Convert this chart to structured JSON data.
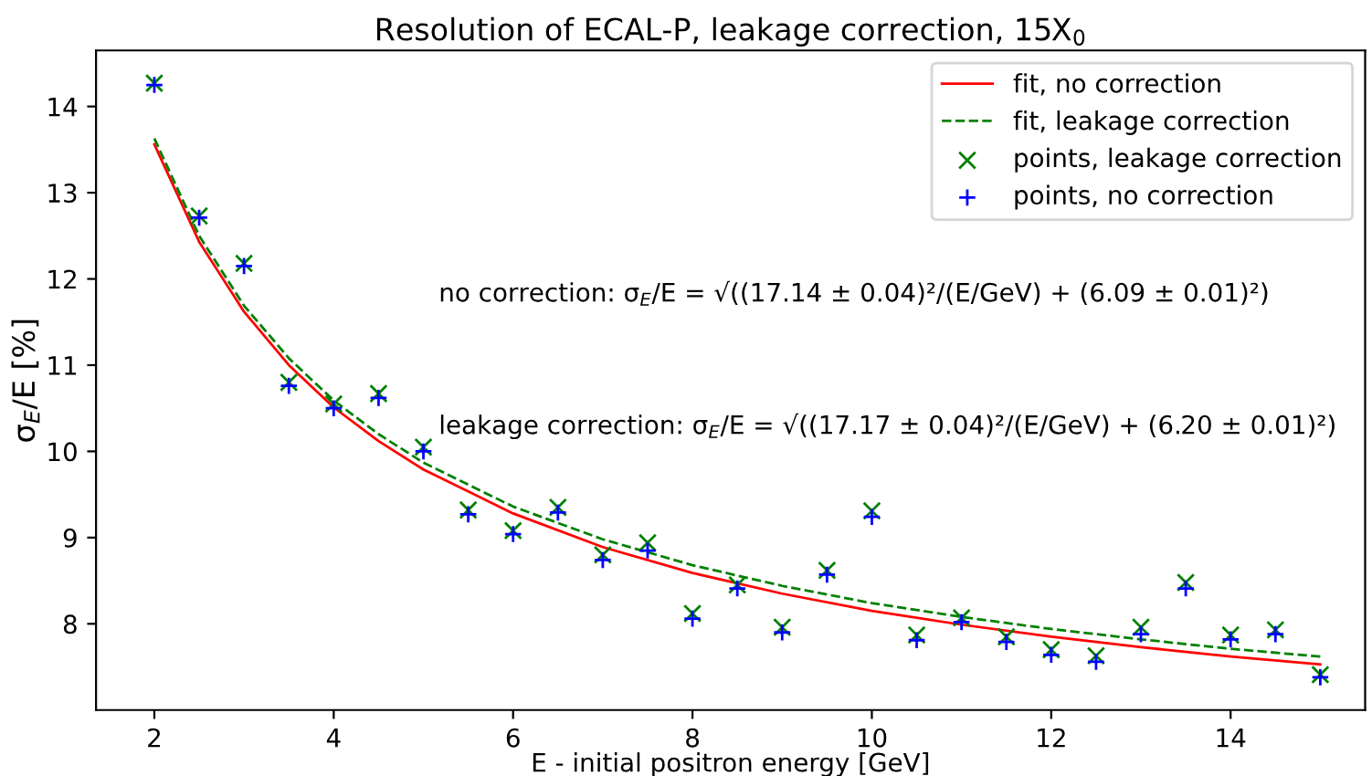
{
  "chart_data": {
    "type": "scatter",
    "title": "Resolution of ECAL-P, leakage correction, 15X$_{0}$",
    "xlabel": "E - initial positron energy [GeV]",
    "ylabel": "σ$_{E}$/E [%]",
    "x": [
      2,
      2.5,
      3,
      3.5,
      4,
      4.5,
      5,
      5.5,
      6,
      6.5,
      7,
      7.5,
      8,
      8.5,
      9,
      9.5,
      10,
      10.5,
      11,
      11.5,
      12,
      12.5,
      13,
      13.5,
      14,
      14.5,
      15
    ],
    "series": [
      {
        "name": "fit, no correction",
        "type": "line",
        "color": "#ff0000",
        "line_style": "solid",
        "marker": "none",
        "x": [
          2,
          2.5,
          3,
          3.5,
          4,
          4.5,
          5,
          6,
          7,
          8,
          9,
          10,
          11,
          12,
          13,
          14,
          15
        ],
        "values": [
          13.56,
          12.43,
          11.62,
          11.0,
          10.51,
          10.12,
          9.79,
          9.28,
          8.89,
          8.59,
          8.35,
          8.15,
          7.99,
          7.85,
          7.73,
          7.62,
          7.53
        ]
      },
      {
        "name": "fit, leakage correction",
        "type": "line",
        "color": "#008000",
        "line_style": "dashed",
        "marker": "none",
        "x": [
          2,
          2.5,
          3,
          3.5,
          4,
          4.5,
          5,
          6,
          7,
          8,
          9,
          10,
          11,
          12,
          13,
          14,
          15
        ],
        "values": [
          13.63,
          12.5,
          11.69,
          11.08,
          10.59,
          10.2,
          9.87,
          9.36,
          8.98,
          8.68,
          8.44,
          8.24,
          8.08,
          7.94,
          7.82,
          7.71,
          7.62
        ]
      },
      {
        "name": "points, leakage correction",
        "color": "#008000",
        "marker": "cross",
        "values": [
          14.27,
          12.73,
          12.18,
          10.8,
          10.55,
          10.67,
          10.05,
          9.32,
          9.08,
          9.35,
          8.8,
          8.94,
          8.12,
          8.45,
          7.96,
          8.62,
          9.31,
          7.87,
          8.07,
          7.85,
          7.7,
          7.63,
          7.96,
          8.48,
          7.87,
          7.93,
          7.41
        ]
      },
      {
        "name": "points, no correction",
        "color": "#0000ff",
        "marker": "plus",
        "values": [
          14.25,
          12.71,
          12.15,
          10.76,
          10.5,
          10.62,
          10.0,
          9.27,
          9.04,
          9.29,
          8.74,
          8.85,
          8.06,
          8.41,
          7.9,
          8.57,
          9.24,
          7.81,
          8.02,
          7.79,
          7.64,
          7.56,
          7.88,
          8.41,
          7.82,
          7.88,
          7.38
        ]
      }
    ],
    "annotations": [
      "no correction: σ$_{E}$/E = √((17.14 ± 0.04)²/(E/GeV) + (6.09 ± 0.01)²)",
      "leakage correction: σ$_{E}$/E = √((17.17 ± 0.04)²/(E/GeV) + (6.20 ± 0.01)²)"
    ],
    "xlim": [
      1.35,
      15.5
    ],
    "ylim": [
      7.0,
      14.65
    ],
    "xticks": [
      2,
      4,
      6,
      8,
      10,
      12,
      14
    ],
    "yticks": [
      8,
      9,
      10,
      11,
      12,
      13,
      14
    ],
    "grid": false,
    "legend": "top right"
  }
}
